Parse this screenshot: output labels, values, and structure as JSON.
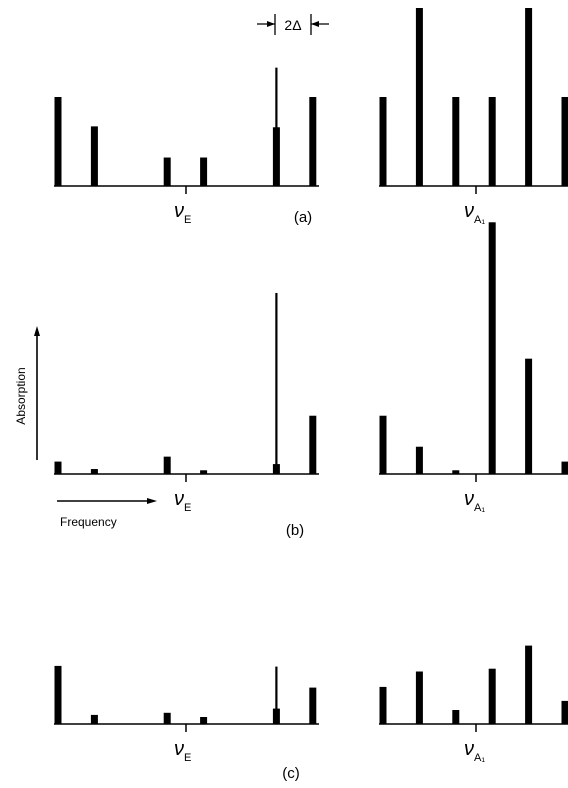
{
  "chart_data": {
    "type": "bar",
    "xlabel": "Frequency",
    "ylabel": "Absorption",
    "annotation": "2Δ",
    "panels": [
      {
        "label": "(a)",
        "groups": [
          {
            "center_label": "ν",
            "center_sub": "E",
            "bars": [
              {
                "x": 0,
                "y": 1.0
              },
              {
                "x": 1,
                "y": 0.67
              },
              {
                "x": 3,
                "y": 0.32
              },
              {
                "x": 4,
                "y": 0.32
              },
              {
                "x": 6,
                "y": 0.66
              },
              {
                "x": 7,
                "y": 1.0
              }
            ],
            "lines": [
              {
                "x": 6,
                "y": 1.33
              }
            ]
          },
          {
            "center_label": "ν",
            "center_sub": "A₁",
            "bars": [
              {
                "x": 0,
                "y": 1.0
              },
              {
                "x": 1,
                "y": 2.0
              },
              {
                "x": 2,
                "y": 1.0
              },
              {
                "x": 3,
                "y": 1.0
              },
              {
                "x": 4,
                "y": 2.0
              },
              {
                "x": 5,
                "y": 1.0
              }
            ],
            "lines": []
          }
        ]
      },
      {
        "label": "(b)",
        "groups": [
          {
            "center_label": "ν",
            "center_sub": "E",
            "bars": [
              {
                "x": 0,
                "y": 0.1
              },
              {
                "x": 1,
                "y": 0.04
              },
              {
                "x": 3,
                "y": 0.14
              },
              {
                "x": 4,
                "y": 0.03
              },
              {
                "x": 6,
                "y": 0.08
              },
              {
                "x": 7,
                "y": 0.47
              }
            ],
            "lines": [
              {
                "x": 6,
                "y": 1.46
              }
            ]
          },
          {
            "center_label": "ν",
            "center_sub": "A₁",
            "bars": [
              {
                "x": 0,
                "y": 0.47
              },
              {
                "x": 1,
                "y": 0.22
              },
              {
                "x": 2,
                "y": 0.03
              },
              {
                "x": 3,
                "y": 2.03
              },
              {
                "x": 4,
                "y": 0.93
              },
              {
                "x": 5,
                "y": 0.1
              }
            ],
            "lines": []
          }
        ]
      },
      {
        "label": "(c)",
        "groups": [
          {
            "center_label": "ν",
            "center_sub": "E",
            "bars": [
              {
                "x": 0,
                "y": 0.83
              },
              {
                "x": 1,
                "y": 0.13
              },
              {
                "x": 3,
                "y": 0.16
              },
              {
                "x": 4,
                "y": 0.1
              },
              {
                "x": 6,
                "y": 0.22
              },
              {
                "x": 7,
                "y": 0.52
              }
            ],
            "lines": [
              {
                "x": 6,
                "y": 0.82
              }
            ]
          },
          {
            "center_label": "ν",
            "center_sub": "A₁",
            "bars": [
              {
                "x": 0,
                "y": 0.53
              },
              {
                "x": 1,
                "y": 0.75
              },
              {
                "x": 2,
                "y": 0.2
              },
              {
                "x": 3,
                "y": 0.79
              },
              {
                "x": 4,
                "y": 1.12
              },
              {
                "x": 5,
                "y": 0.33
              }
            ],
            "lines": []
          }
        ]
      }
    ]
  }
}
